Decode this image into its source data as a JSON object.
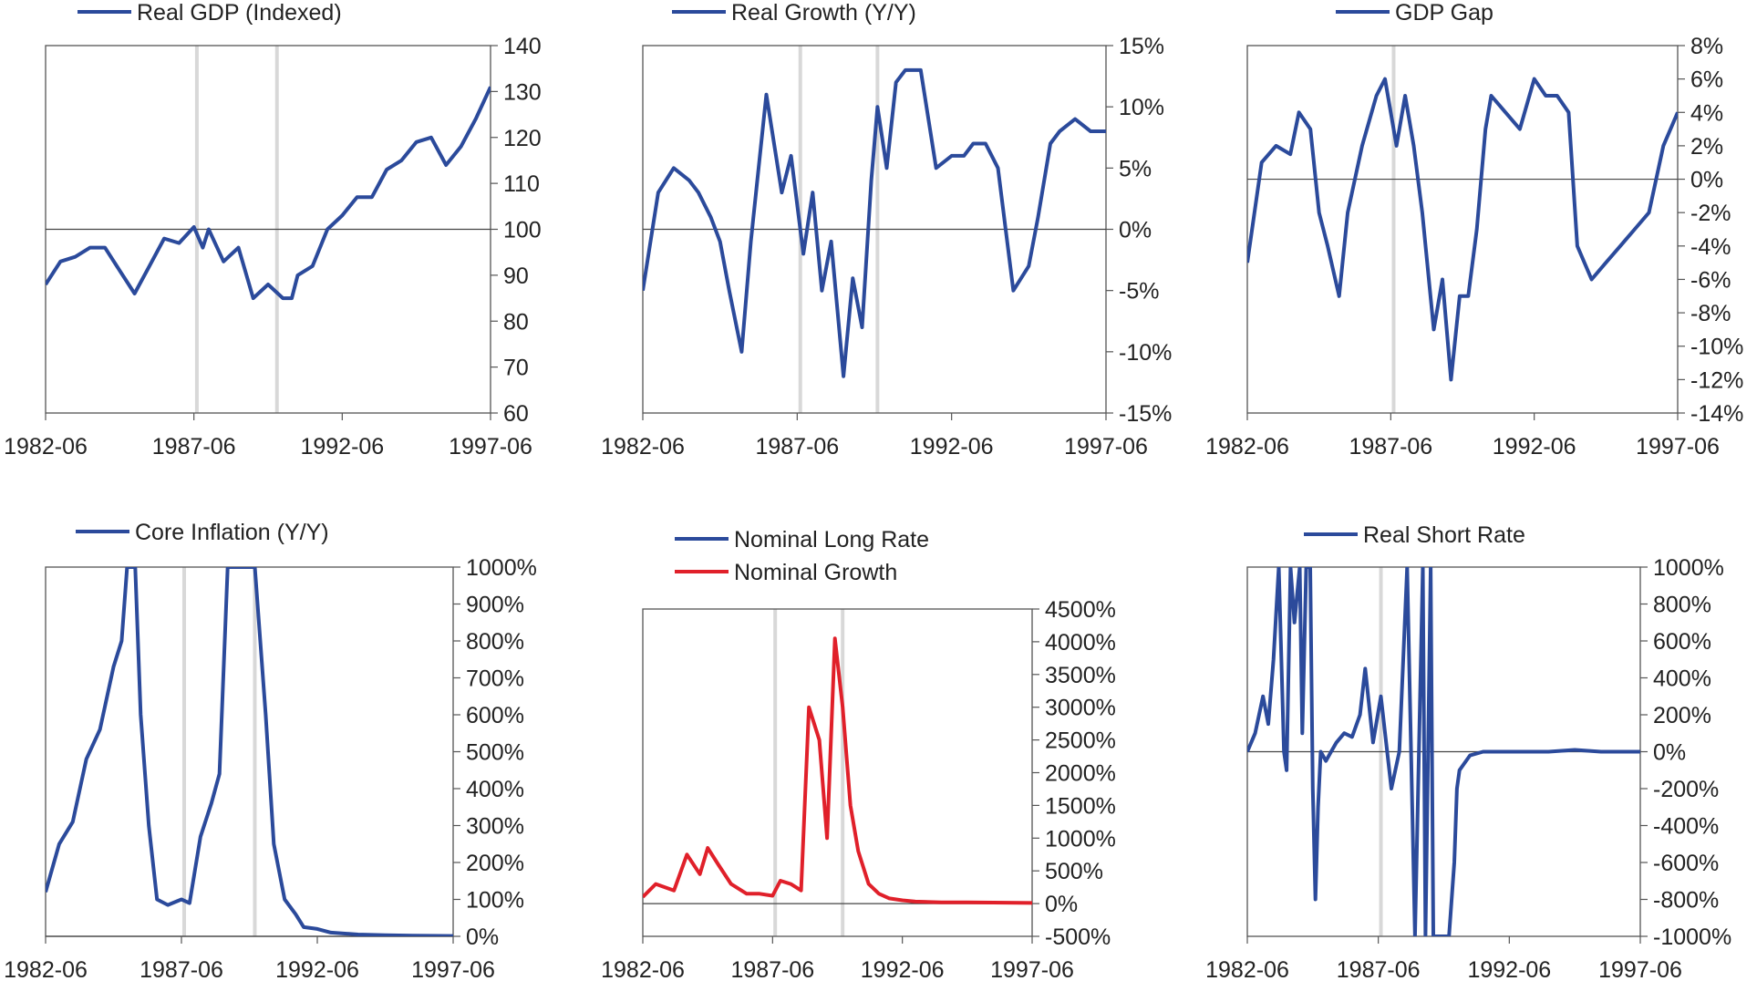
{
  "colors": {
    "blue": "#2b4a9b",
    "red": "#e0202a",
    "recession": "#d8d8d8",
    "axis": "#555555"
  },
  "chart_data": [
    {
      "type": "line",
      "legend": [
        "Real GDP (Indexed)"
      ],
      "series": [
        {
          "name": "Real GDP (Indexed)",
          "color": "#2b4a9b",
          "x": [
            1982.5,
            1983.0,
            1983.5,
            1984.0,
            1984.5,
            1985.0,
            1985.5,
            1986.0,
            1986.5,
            1987.0,
            1987.5,
            1987.8,
            1988.0,
            1988.5,
            1989.0,
            1989.5,
            1990.0,
            1990.5,
            1990.8,
            1991.0,
            1991.5,
            1992.0,
            1992.5,
            1993.0,
            1993.5,
            1994.0,
            1994.5,
            1995.0,
            1995.5,
            1996.0,
            1996.5,
            1997.0,
            1997.5
          ],
          "y": [
            88,
            93,
            94,
            96,
            96,
            91,
            86,
            92,
            98,
            97,
            100.5,
            96,
            100,
            93,
            96,
            85,
            88,
            85,
            85,
            90,
            92,
            100,
            103,
            107,
            107,
            113,
            115,
            119,
            120,
            114,
            118,
            124,
            131
          ]
        }
      ],
      "ylim": [
        60,
        140
      ],
      "yticks": [
        60,
        70,
        80,
        90,
        100,
        110,
        120,
        130,
        140
      ],
      "ytick_labels": [
        "60",
        "70",
        "80",
        "90",
        "100",
        "110",
        "120",
        "130",
        "140"
      ],
      "xlim": [
        1982.5,
        1997.5
      ],
      "xtick_labels": [
        "1982-06",
        "1987-06",
        "1992-06",
        "1997-06"
      ],
      "recessions": [
        1987.6,
        1990.3
      ],
      "baseline": 100
    },
    {
      "type": "line",
      "legend": [
        "Real Growth (Y/Y)"
      ],
      "series": [
        {
          "name": "Real Growth (Y/Y)",
          "color": "#2b4a9b",
          "x": [
            1982.5,
            1983.0,
            1983.5,
            1984.0,
            1984.3,
            1984.7,
            1985.0,
            1985.3,
            1985.7,
            1986.0,
            1986.5,
            1987.0,
            1987.3,
            1987.7,
            1988.0,
            1988.3,
            1988.6,
            1989.0,
            1989.3,
            1989.6,
            1989.9,
            1990.1,
            1990.4,
            1990.7,
            1991.0,
            1991.5,
            1992.0,
            1992.5,
            1992.9,
            1993.2,
            1993.6,
            1994.0,
            1994.5,
            1995.0,
            1995.3,
            1995.7,
            1996.0,
            1996.5,
            1997.0,
            1997.5
          ],
          "y": [
            -5,
            3,
            5,
            4,
            3,
            1,
            -1,
            -5,
            -10,
            -1,
            11,
            3,
            6,
            -2,
            3,
            -5,
            -1,
            -12,
            -4,
            -8,
            4,
            10,
            5,
            12,
            13,
            13,
            5,
            6,
            6,
            7,
            7,
            5,
            -5,
            -3,
            1,
            7,
            8,
            9,
            8,
            8
          ]
        }
      ],
      "ylim": [
        -15,
        15
      ],
      "yticks": [
        -15,
        -10,
        -5,
        0,
        5,
        10,
        15
      ],
      "ytick_labels": [
        "-15%",
        "-10%",
        "-5%",
        "0%",
        "5%",
        "10%",
        "15%"
      ],
      "xlim": [
        1982.5,
        1997.5
      ],
      "xtick_labels": [
        "1982-06",
        "1987-06",
        "1992-06",
        "1997-06"
      ],
      "recessions": [
        1987.6,
        1990.1
      ],
      "baseline": 0
    },
    {
      "type": "line",
      "legend": [
        "GDP Gap"
      ],
      "series": [
        {
          "name": "GDP Gap",
          "color": "#2b4a9b",
          "x": [
            1982.5,
            1983.0,
            1983.5,
            1984.0,
            1984.3,
            1984.7,
            1985.0,
            1985.3,
            1985.7,
            1986.0,
            1986.5,
            1987.0,
            1987.3,
            1987.7,
            1988.0,
            1988.3,
            1988.6,
            1989.0,
            1989.3,
            1989.6,
            1989.9,
            1990.2,
            1990.5,
            1990.8,
            1991.0,
            1991.5,
            1992.0,
            1992.5,
            1992.9,
            1993.3,
            1993.7,
            1994.0,
            1994.5,
            1995.0,
            1995.5,
            1996.0,
            1996.5,
            1997.0,
            1997.5
          ],
          "y": [
            -5,
            1,
            2,
            1.5,
            4,
            3,
            -2,
            -4,
            -7,
            -2,
            2,
            5,
            6,
            2,
            5,
            2,
            -2,
            -9,
            -6,
            -12,
            -7,
            -7,
            -3,
            3,
            5,
            4,
            3,
            6,
            5,
            5,
            4,
            -4,
            -6,
            -5,
            -4,
            -3,
            -2,
            2,
            4
          ]
        }
      ],
      "ylim": [
        -14,
        8
      ],
      "yticks": [
        -14,
        -12,
        -10,
        -8,
        -6,
        -4,
        -2,
        0,
        2,
        4,
        6,
        8
      ],
      "ytick_labels": [
        "-14%",
        "-12%",
        "-10%",
        "-8%",
        "-6%",
        "-4%",
        "-2%",
        "0%",
        "2%",
        "4%",
        "6%",
        "8%"
      ],
      "xlim": [
        1982.5,
        1997.5
      ],
      "xtick_labels": [
        "1982-06",
        "1987-06",
        "1992-06",
        "1997-06"
      ],
      "recessions": [
        1987.6
      ],
      "baseline": 0
    },
    {
      "type": "line",
      "legend": [
        "Core Inflation (Y/Y)"
      ],
      "series": [
        {
          "name": "Core Inflation (Y/Y)",
          "color": "#2b4a9b",
          "x": [
            1982.5,
            1983.0,
            1983.5,
            1984.0,
            1984.5,
            1985.0,
            1985.3,
            1985.5,
            1985.8,
            1986.0,
            1986.3,
            1986.6,
            1987.0,
            1987.5,
            1987.8,
            1988.2,
            1988.6,
            1988.9,
            1989.2,
            1989.5,
            1989.8,
            1990.2,
            1990.6,
            1990.9,
            1991.3,
            1991.7,
            1992.0,
            1992.5,
            1993.0,
            1994.0,
            1995.0,
            1996.0,
            1997.5
          ],
          "y": [
            120,
            250,
            310,
            480,
            560,
            730,
            800,
            1000,
            1000,
            600,
            300,
            100,
            85,
            100,
            90,
            270,
            360,
            440,
            1000,
            1000,
            1000,
            1000,
            600,
            250,
            100,
            60,
            25,
            20,
            10,
            5,
            3,
            2,
            1
          ]
        }
      ],
      "ylim": [
        0,
        1000
      ],
      "yticks": [
        0,
        100,
        200,
        300,
        400,
        500,
        600,
        700,
        800,
        900,
        1000
      ],
      "ytick_labels": [
        "0%",
        "100%",
        "200%",
        "300%",
        "400%",
        "500%",
        "600%",
        "700%",
        "800%",
        "900%",
        "1000%"
      ],
      "xlim": [
        1982.5,
        1997.5
      ],
      "xtick_labels": [
        "1982-06",
        "1987-06",
        "1992-06",
        "1997-06"
      ],
      "recessions": [
        1987.6,
        1990.2
      ],
      "baseline": 0
    },
    {
      "type": "line",
      "legend": [
        "Nominal Long Rate",
        "Nominal Growth"
      ],
      "series": [
        {
          "name": "Nominal Long Rate",
          "color": "#2b4a9b",
          "x": [],
          "y": []
        },
        {
          "name": "Nominal Growth",
          "color": "#e0202a",
          "x": [
            1982.5,
            1983.0,
            1983.7,
            1984.2,
            1984.7,
            1985.0,
            1985.4,
            1985.9,
            1986.5,
            1987.0,
            1987.5,
            1987.8,
            1988.2,
            1988.6,
            1988.9,
            1989.3,
            1989.6,
            1989.9,
            1990.2,
            1990.5,
            1990.8,
            1991.2,
            1991.6,
            1992.0,
            1992.5,
            1993.0,
            1994.0,
            1995.0,
            1996.0,
            1997.5
          ],
          "y": [
            100,
            300,
            200,
            750,
            450,
            850,
            600,
            300,
            150,
            150,
            120,
            350,
            300,
            200,
            3000,
            2500,
            1000,
            4050,
            3000,
            1500,
            800,
            300,
            150,
            80,
            50,
            30,
            20,
            20,
            15,
            10
          ]
        }
      ],
      "ylim": [
        -500,
        4500
      ],
      "yticks": [
        -500,
        0,
        500,
        1000,
        1500,
        2000,
        2500,
        3000,
        3500,
        4000,
        4500
      ],
      "ytick_labels": [
        "-500%",
        "0%",
        "500%",
        "1000%",
        "1500%",
        "2000%",
        "2500%",
        "3000%",
        "3500%",
        "4000%",
        "4500%"
      ],
      "xlim": [
        1982.5,
        1997.5
      ],
      "xtick_labels": [
        "1982-06",
        "1987-06",
        "1992-06",
        "1997-06"
      ],
      "recessions": [
        1987.6,
        1990.2
      ],
      "baseline": 0
    },
    {
      "type": "line",
      "legend": [
        "Real Short Rate"
      ],
      "series": [
        {
          "name": "Real Short Rate",
          "color": "#2b4a9b",
          "x": [
            1982.5,
            1982.8,
            1983.1,
            1983.3,
            1983.5,
            1983.7,
            1983.9,
            1984.0,
            1984.15,
            1984.3,
            1984.5,
            1984.6,
            1984.75,
            1984.9,
            1985.0,
            1985.1,
            1985.2,
            1985.3,
            1985.5,
            1985.7,
            1985.9,
            1986.2,
            1986.5,
            1986.8,
            1987.0,
            1987.3,
            1987.6,
            1988.0,
            1988.3,
            1988.6,
            1988.9,
            1989.2,
            1989.3,
            1989.5,
            1989.6,
            1989.8,
            1989.9,
            1990.0,
            1990.2,
            1990.4,
            1990.5,
            1990.6,
            1990.8,
            1991.0,
            1991.5,
            1991.8,
            1992.0,
            1992.5,
            1993.0,
            1994.0,
            1995.0,
            1996.0,
            1997.5
          ],
          "y": [
            0,
            100,
            300,
            150,
            500,
            1000,
            0,
            -100,
            1000,
            700,
            1000,
            100,
            1000,
            1000,
            -200,
            -800,
            -300,
            0,
            -50,
            0,
            50,
            100,
            80,
            200,
            450,
            50,
            300,
            -200,
            0,
            1000,
            -1000,
            1000,
            -1000,
            1000,
            -1000,
            -1000,
            -1000,
            -1000,
            -1000,
            -600,
            -200,
            -100,
            -60,
            -20,
            0,
            0,
            0,
            0,
            0,
            0,
            10,
            0,
            0
          ]
        }
      ],
      "ylim": [
        -1000,
        1000
      ],
      "yticks": [
        -1000,
        -800,
        -600,
        -400,
        -200,
        0,
        200,
        400,
        600,
        800,
        1000
      ],
      "ytick_labels": [
        "-1000%",
        "-800%",
        "-600%",
        "-400%",
        "-200%",
        "0%",
        "200%",
        "400%",
        "600%",
        "800%",
        "1000%"
      ],
      "xlim": [
        1982.5,
        1997.5
      ],
      "xtick_labels": [
        "1982-06",
        "1987-06",
        "1992-06",
        "1997-06"
      ],
      "recessions": [
        1987.6
      ],
      "baseline": 0
    }
  ]
}
